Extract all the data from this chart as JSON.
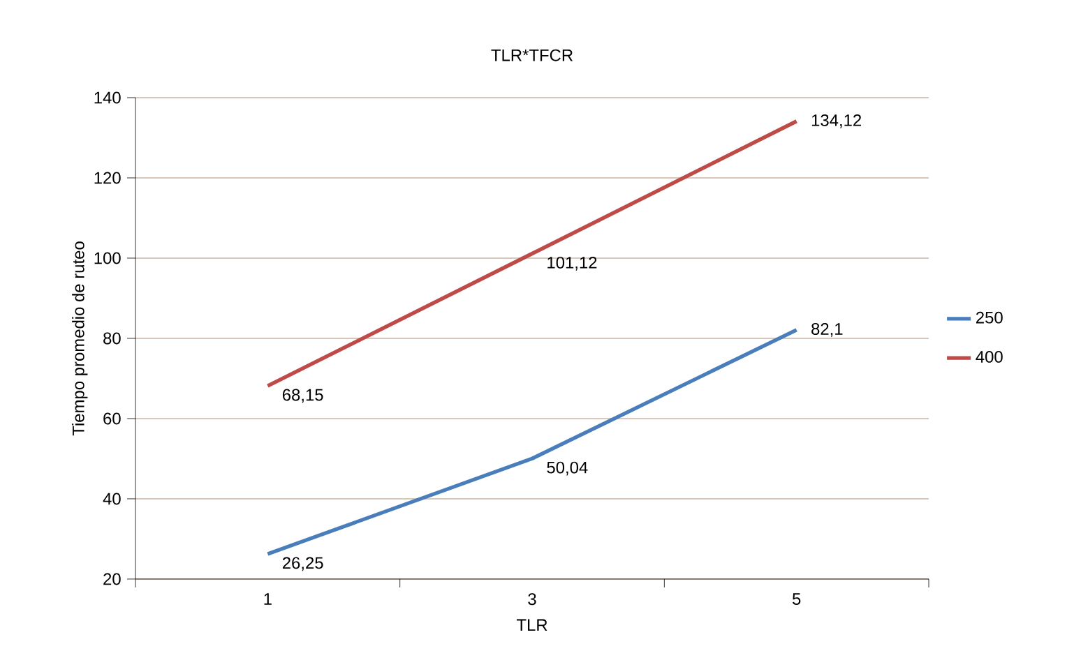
{
  "chart_data": {
    "type": "line",
    "title": "TLR*TFCR",
    "xlabel": "TLR",
    "ylabel": "Tiempo promedio de ruteo",
    "categories": [
      "1",
      "3",
      "5"
    ],
    "series": [
      {
        "name": "250",
        "color": "#4a7ebb",
        "values": [
          26.25,
          50.04,
          82.1
        ],
        "value_labels": [
          "26,25",
          "50,04",
          "82,1"
        ]
      },
      {
        "name": "400",
        "color": "#be4b48",
        "values": [
          68.15,
          101.12,
          134.12
        ],
        "value_labels": [
          "68,15",
          "101,12",
          "134,12"
        ]
      }
    ],
    "ylim": [
      20,
      140
    ],
    "yticks": [
      20,
      40,
      60,
      80,
      100,
      120,
      140
    ],
    "grid": "y",
    "legend": "right",
    "marker": "none",
    "line_style": "solid"
  }
}
